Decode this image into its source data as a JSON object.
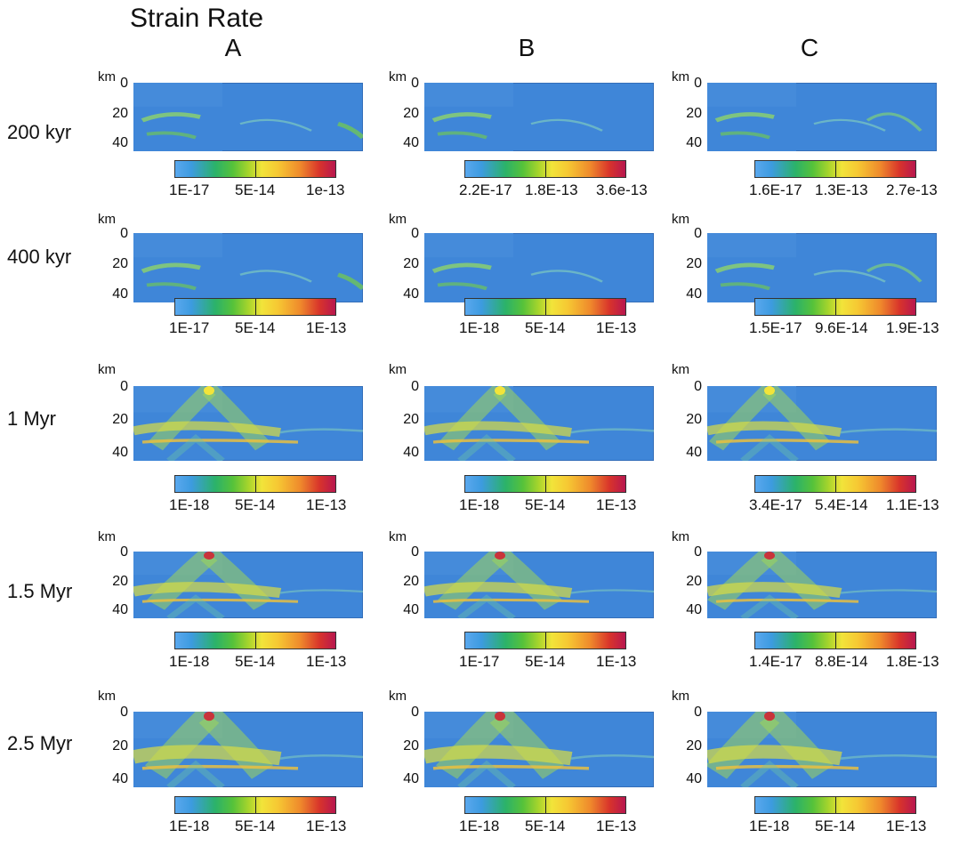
{
  "title": "Strain Rate",
  "columns": [
    "A",
    "B",
    "C"
  ],
  "depth_axis": {
    "unit": "km",
    "ticks": [
      "0",
      "20",
      "40"
    ]
  },
  "rows": [
    {
      "label": "200 kyr",
      "colorbars": [
        [
          "1E-17",
          "5E-14",
          "1e-13"
        ],
        [
          "2.2E-17",
          "1.8E-13",
          "3.6e-13"
        ],
        [
          "1.6E-17",
          "1.3E-13",
          "2.7e-13"
        ]
      ]
    },
    {
      "label": "400 kyr",
      "colorbars": [
        [
          "1E-17",
          "5E-14",
          "1E-13"
        ],
        [
          "1E-18",
          "5E-14",
          "1E-13"
        ],
        [
          "1.5E-17",
          "9.6E-14",
          "1.9E-13"
        ]
      ]
    },
    {
      "label": "1 Myr",
      "colorbars": [
        [
          "1E-18",
          "5E-14",
          "1E-13"
        ],
        [
          "1E-18",
          "5E-14",
          "1E-13"
        ],
        [
          "3.4E-17",
          "5.4E-14",
          "1.1E-13"
        ]
      ]
    },
    {
      "label": "1.5 Myr",
      "colorbars": [
        [
          "1E-18",
          "5E-14",
          "1E-13"
        ],
        [
          "1E-17",
          "5E-14",
          "1E-13"
        ],
        [
          "1.4E-17",
          "8.8E-14",
          "1.8E-13"
        ]
      ]
    },
    {
      "label": "2.5 Myr",
      "colorbars": [
        [
          "1E-18",
          "5E-14",
          "1E-13"
        ],
        [
          "1E-18",
          "5E-14",
          "1E-13"
        ],
        [
          "1E-18",
          "5E-14",
          "1E-13"
        ]
      ]
    }
  ],
  "colors": {
    "background_field": "#3f86d8",
    "low": "#5aa8ee",
    "mid": "#f2e43a",
    "high": "#b8174f"
  }
}
